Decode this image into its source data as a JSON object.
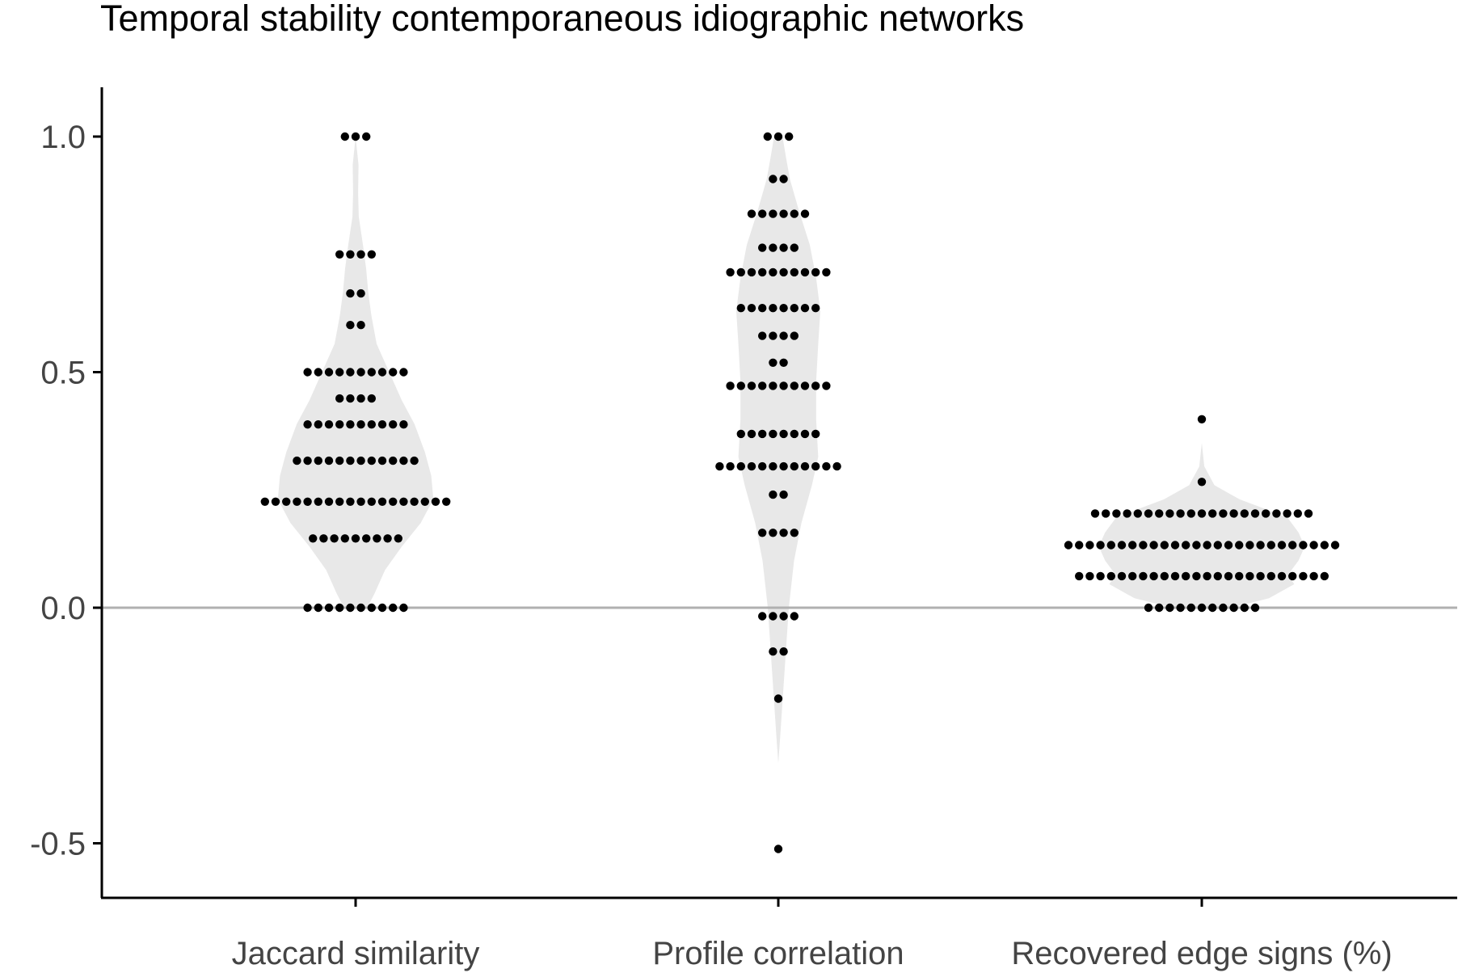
{
  "chart_data": {
    "type": "scatter",
    "subtype": "violin-dotplot",
    "title": "Temporal stability contemporaneous idiographic networks",
    "xlabel": "",
    "ylabel": "",
    "categories": [
      "Jaccard similarity",
      "Profile correlation",
      "Recovered edge signs (%)"
    ],
    "ylim": [
      -0.6,
      1.1
    ],
    "yticks": [
      -0.5,
      0.0,
      0.5,
      1.0
    ],
    "ytick_labels": [
      "-0.5",
      "0.0",
      "0.5",
      "1.0"
    ],
    "reference_line": 0.0,
    "grid": false,
    "colors": {
      "violin": "#e8e8e8",
      "dot": "#000000",
      "axis": "#000000",
      "reference_line": "#b0b0b0",
      "tick_label": "#444444"
    },
    "series": [
      {
        "name": "Jaccard similarity",
        "rows": [
          {
            "y": 1.0,
            "n": 3
          },
          {
            "y": 0.75,
            "n": 4
          },
          {
            "y": 0.667,
            "n": 2
          },
          {
            "y": 0.6,
            "n": 2
          },
          {
            "y": 0.5,
            "n": 10
          },
          {
            "y": 0.444,
            "n": 4
          },
          {
            "y": 0.389,
            "n": 10
          },
          {
            "y": 0.312,
            "n": 12
          },
          {
            "y": 0.225,
            "n": 18
          },
          {
            "y": 0.147,
            "n": 9
          },
          {
            "y": 0.0,
            "n": 10
          }
        ],
        "violin": [
          {
            "y": 0.0,
            "w": 0.055
          },
          {
            "y": 0.03,
            "w": 0.09
          },
          {
            "y": 0.08,
            "w": 0.14
          },
          {
            "y": 0.13,
            "w": 0.22
          },
          {
            "y": 0.18,
            "w": 0.31
          },
          {
            "y": 0.23,
            "w": 0.37
          },
          {
            "y": 0.28,
            "w": 0.36
          },
          {
            "y": 0.33,
            "w": 0.33
          },
          {
            "y": 0.39,
            "w": 0.28
          },
          {
            "y": 0.44,
            "w": 0.22
          },
          {
            "y": 0.5,
            "w": 0.16
          },
          {
            "y": 0.56,
            "w": 0.1
          },
          {
            "y": 0.62,
            "w": 0.075
          },
          {
            "y": 0.67,
            "w": 0.06
          },
          {
            "y": 0.72,
            "w": 0.05
          },
          {
            "y": 0.77,
            "w": 0.035
          },
          {
            "y": 0.83,
            "w": 0.015
          },
          {
            "y": 0.88,
            "w": 0.012
          },
          {
            "y": 0.94,
            "w": 0.014
          },
          {
            "y": 1.0,
            "w": 0.0
          }
        ]
      },
      {
        "name": "Profile correlation",
        "rows": [
          {
            "y": 1.0,
            "n": 3
          },
          {
            "y": 0.91,
            "n": 2
          },
          {
            "y": 0.836,
            "n": 6
          },
          {
            "y": 0.764,
            "n": 4
          },
          {
            "y": 0.712,
            "n": 10
          },
          {
            "y": 0.636,
            "n": 8
          },
          {
            "y": 0.577,
            "n": 4
          },
          {
            "y": 0.52,
            "n": 2
          },
          {
            "y": 0.471,
            "n": 10
          },
          {
            "y": 0.369,
            "n": 8
          },
          {
            "y": 0.3,
            "n": 12
          },
          {
            "y": 0.24,
            "n": 2
          },
          {
            "y": 0.159,
            "n": 4
          },
          {
            "y": -0.018,
            "n": 4
          },
          {
            "y": -0.093,
            "n": 2
          },
          {
            "y": -0.193,
            "n": 1
          },
          {
            "y": -0.512,
            "n": 1
          }
        ],
        "violin": [
          {
            "y": -0.33,
            "w": 0.0
          },
          {
            "y": -0.28,
            "w": 0.008
          },
          {
            "y": -0.2,
            "w": 0.02
          },
          {
            "y": -0.1,
            "w": 0.035
          },
          {
            "y": 0.0,
            "w": 0.05
          },
          {
            "y": 0.1,
            "w": 0.075
          },
          {
            "y": 0.18,
            "w": 0.11
          },
          {
            "y": 0.26,
            "w": 0.16
          },
          {
            "y": 0.32,
            "w": 0.19
          },
          {
            "y": 0.4,
            "w": 0.18
          },
          {
            "y": 0.48,
            "w": 0.18
          },
          {
            "y": 0.56,
            "w": 0.19
          },
          {
            "y": 0.63,
            "w": 0.2
          },
          {
            "y": 0.7,
            "w": 0.18
          },
          {
            "y": 0.77,
            "w": 0.15
          },
          {
            "y": 0.84,
            "w": 0.1
          },
          {
            "y": 0.91,
            "w": 0.055
          },
          {
            "y": 0.96,
            "w": 0.035
          },
          {
            "y": 1.0,
            "w": 0.02
          }
        ]
      },
      {
        "name": "Recovered edge signs (%)",
        "rows": [
          {
            "y": 0.4,
            "n": 1
          },
          {
            "y": 0.267,
            "n": 1
          },
          {
            "y": 0.2,
            "n": 21
          },
          {
            "y": 0.133,
            "n": 26
          },
          {
            "y": 0.067,
            "n": 24
          },
          {
            "y": 0.0,
            "n": 11
          }
        ],
        "violin": [
          {
            "y": 0.0,
            "w": 0.14
          },
          {
            "y": 0.02,
            "w": 0.32
          },
          {
            "y": 0.05,
            "w": 0.44
          },
          {
            "y": 0.07,
            "w": 0.41
          },
          {
            "y": 0.1,
            "w": 0.46
          },
          {
            "y": 0.13,
            "w": 0.49
          },
          {
            "y": 0.16,
            "w": 0.46
          },
          {
            "y": 0.19,
            "w": 0.41
          },
          {
            "y": 0.21,
            "w": 0.3
          },
          {
            "y": 0.23,
            "w": 0.18
          },
          {
            "y": 0.26,
            "w": 0.06
          },
          {
            "y": 0.3,
            "w": 0.012
          },
          {
            "y": 0.35,
            "w": 0.0
          }
        ]
      }
    ]
  }
}
